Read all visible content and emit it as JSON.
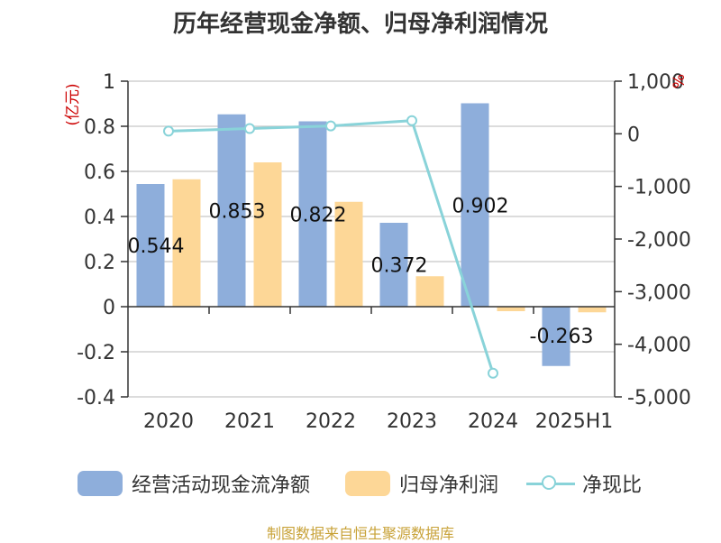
{
  "title": "历年经营现金净额、归母净利润情况",
  "source": "制图数据来自恒生聚源数据库",
  "colors": {
    "ocf": "#8eaedb",
    "profit": "#fdd797",
    "ratio": "#89d3d9",
    "axis_unit": "#cc0000",
    "source": "#c8a238"
  },
  "chart_data": {
    "type": "bar",
    "categories": [
      "2020",
      "2021",
      "2022",
      "2023",
      "2024",
      "2025H1"
    ],
    "left_axis": {
      "unit": "(亿元)",
      "ylim": [
        -0.4,
        1
      ],
      "ticks": [
        1,
        0.8,
        0.6,
        0.4,
        0.2,
        0,
        -0.2,
        -0.4
      ],
      "tick_labels": [
        "1",
        "0.8",
        "0.6",
        "0.4",
        "0.2",
        "0",
        "-0.2",
        "-0.4"
      ]
    },
    "right_axis": {
      "unit": "%",
      "ylim": [
        -5000,
        1000
      ],
      "ticks": [
        1000,
        0,
        -1000,
        -2000,
        -3000,
        -4000,
        -5000
      ],
      "tick_labels": [
        "1,000",
        "0",
        "-1,000",
        "-2,000",
        "-3,000",
        "-4,000",
        "-5,000"
      ]
    },
    "grid": true,
    "legend_position": "bottom",
    "series": [
      {
        "name": "经营活动现金流净额",
        "type": "bar",
        "axis": "left",
        "values": [
          0.544,
          0.853,
          0.822,
          0.372,
          0.902,
          -0.263
        ],
        "labels": [
          "0.544",
          "0.853",
          "0.822",
          "0.372",
          "0.902",
          "-0.263"
        ]
      },
      {
        "name": "归母净利润",
        "type": "bar",
        "axis": "left",
        "values": [
          0.565,
          0.64,
          0.465,
          0.135,
          -0.02,
          -0.025
        ]
      },
      {
        "name": "净现比",
        "type": "line",
        "axis": "right",
        "values": [
          50,
          100,
          150,
          250,
          -4550,
          null
        ]
      }
    ]
  }
}
